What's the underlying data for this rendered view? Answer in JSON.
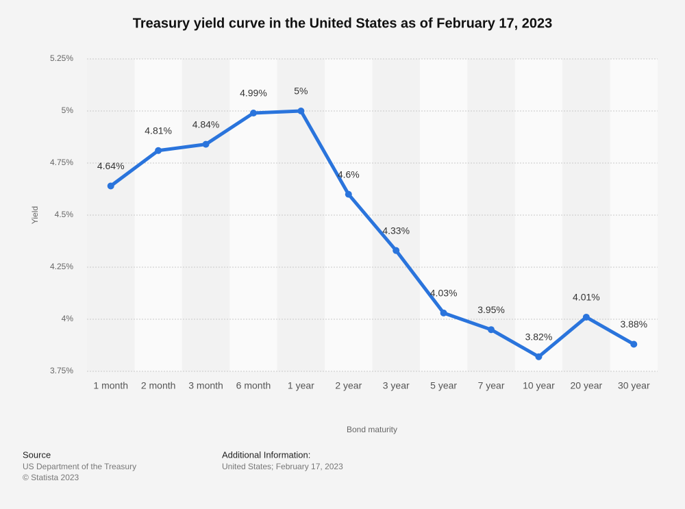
{
  "chart_data": {
    "type": "line",
    "title": "Treasury yield curve in the United States as of February 17, 2023",
    "y_label": "Yield",
    "x_label": "Bond maturity",
    "categories": [
      "1 month",
      "2 month",
      "3 month",
      "6 month",
      "1 year",
      "2 year",
      "3 year",
      "5 year",
      "7 year",
      "10 year",
      "20 year",
      "30 year"
    ],
    "series": [
      {
        "name": "Yield",
        "color": "#2a74dc",
        "values": [
          4.64,
          4.81,
          4.84,
          4.99,
          5,
          4.6,
          4.33,
          4.03,
          3.95,
          3.82,
          4.01,
          3.88
        ],
        "value_labels": [
          "4.64%",
          "4.81%",
          "4.84%",
          "4.99%",
          "5%",
          "4.6%",
          "4.33%",
          "4.03%",
          "3.95%",
          "3.82%",
          "4.01%",
          "3.88%"
        ]
      }
    ],
    "ylim": [
      3.75,
      5.25
    ],
    "yticks": [
      {
        "value": 3.75,
        "label": "3.75%"
      },
      {
        "value": 4,
        "label": "4%"
      },
      {
        "value": 4.25,
        "label": "4.25%"
      },
      {
        "value": 4.5,
        "label": "4.5%"
      },
      {
        "value": 4.75,
        "label": "4.75%"
      },
      {
        "value": 5,
        "label": "5%"
      },
      {
        "value": 5.25,
        "label": "5.25%"
      }
    ],
    "grid": true
  },
  "footer": {
    "source_title": "Source",
    "source": "US Department of the Treasury",
    "copyright": "© Statista 2023",
    "info_title": "Additional Information:",
    "info": "United States; February 17, 2023"
  }
}
